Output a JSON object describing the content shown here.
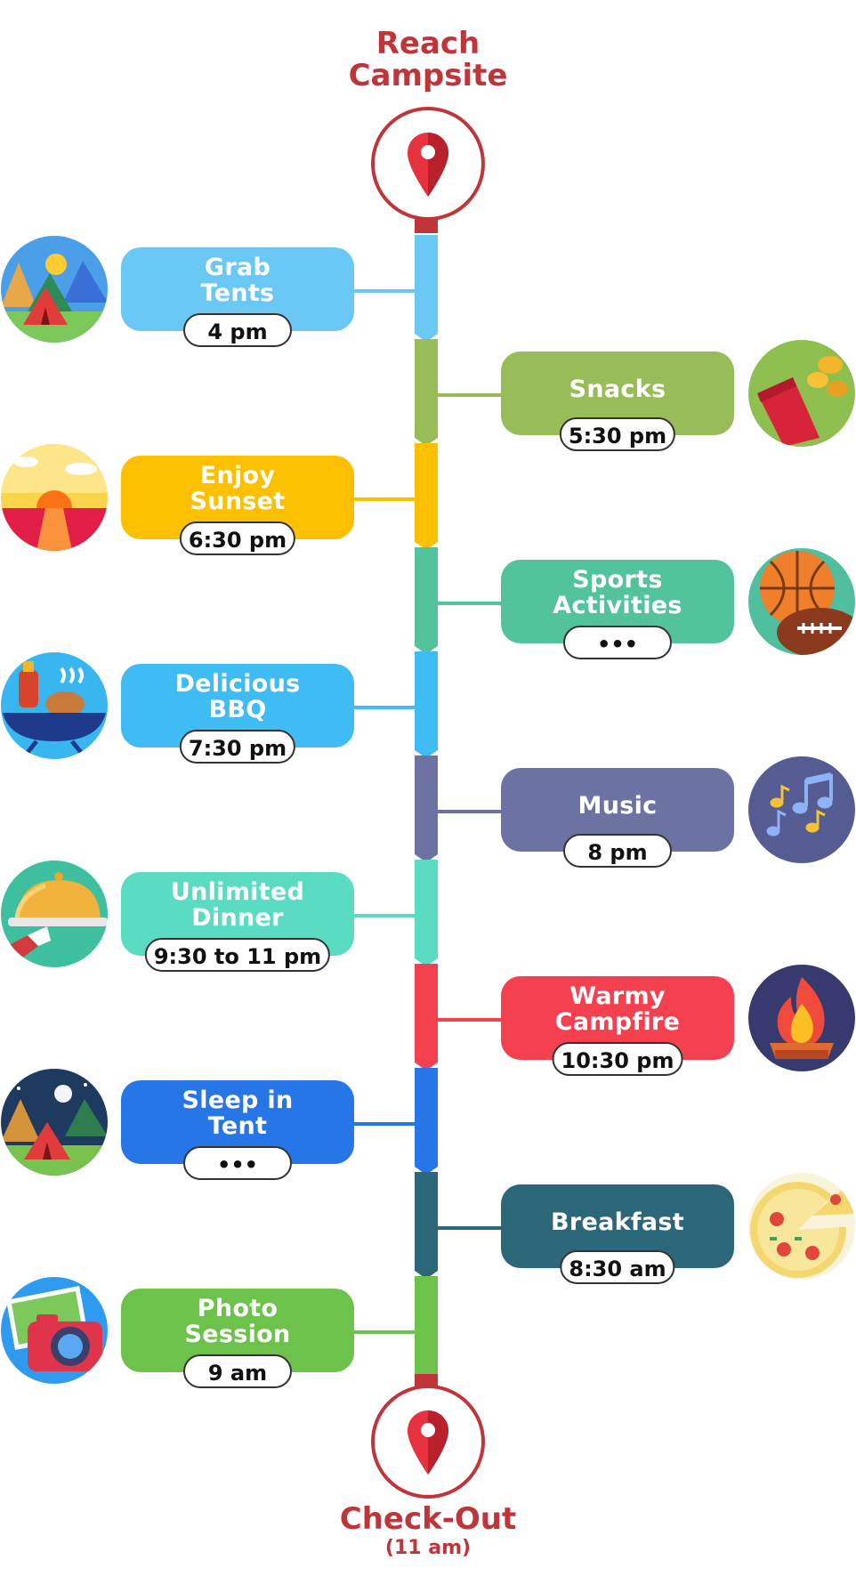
{
  "title_top": {
    "line1": "Reach",
    "line2": "Campsite"
  },
  "title_bottom": {
    "main": "Check-Out",
    "sub": "(11 am)"
  },
  "events": [
    {
      "line1": "Grab",
      "line2": "Tents",
      "time": "4 pm",
      "side": "left",
      "color": "#6ac8f5",
      "icon": "tents-day-icon"
    },
    {
      "line1": "Snacks",
      "line2": "",
      "time": "5:30 pm",
      "side": "right",
      "color": "#98bd58",
      "icon": "chips-snack-icon"
    },
    {
      "line1": "Enjoy",
      "line2": "Sunset",
      "time": "6:30 pm",
      "side": "left",
      "color": "#fcc000",
      "icon": "sunset-icon"
    },
    {
      "line1": "Sports",
      "line2": "Activities",
      "time": "•••",
      "side": "right",
      "color": "#52c39a",
      "icon": "sports-balls-icon"
    },
    {
      "line1": "Delicious",
      "line2": "BBQ",
      "time": "7:30 pm",
      "side": "left",
      "color": "#3fbcf4",
      "icon": "bbq-grill-icon"
    },
    {
      "line1": "Music",
      "line2": "",
      "time": "8 pm",
      "side": "right",
      "color": "#6c72a2",
      "icon": "music-notes-icon"
    },
    {
      "line1": "Unlimited",
      "line2": "Dinner",
      "time": "9:30 to 11 pm",
      "side": "left",
      "color": "#59dcc1",
      "icon": "dinner-cloche-icon"
    },
    {
      "line1": "Warmy",
      "line2": "Campfire",
      "time": "10:30 pm",
      "side": "right",
      "color": "#f5404f",
      "icon": "campfire-icon"
    },
    {
      "line1": "Sleep in",
      "line2": "Tent",
      "time": "•••",
      "side": "left",
      "color": "#2676e8",
      "icon": "tents-night-icon"
    },
    {
      "line1": "Breakfast",
      "line2": "",
      "time": "8:30 am",
      "side": "right",
      "color": "#2b6778",
      "icon": "pizza-icon"
    },
    {
      "line1": "Photo",
      "line2": "Session",
      "time": "9 am",
      "side": "left",
      "color": "#6cc24a",
      "icon": "camera-icon"
    }
  ]
}
